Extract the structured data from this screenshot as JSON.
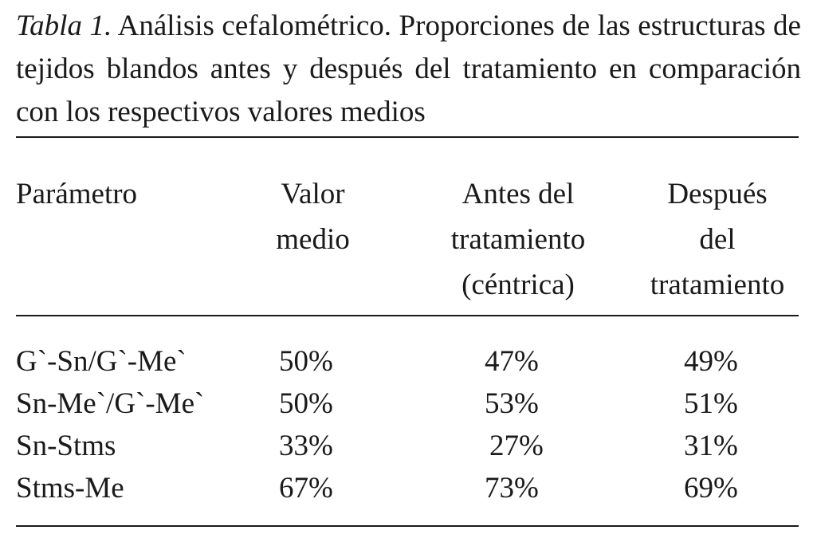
{
  "caption": {
    "label": "Tabla 1.",
    "text": "Análisis cefalométrico. Proporciones de las estructuras de tejidos blandos antes y después del tratamiento en comparación con los respectivos valores medios"
  },
  "table": {
    "headers": [
      [
        "Parámetro"
      ],
      [
        "Valor",
        "medio"
      ],
      [
        "Antes del",
        "tratamiento",
        "(céntrica)"
      ],
      [
        "Después",
        "del",
        "tratamiento"
      ]
    ],
    "rows": [
      [
        "G`-Sn/G`-Me`",
        "50%",
        "47%",
        "49%"
      ],
      [
        "Sn-Me`/G`-Me`",
        "50%",
        "53%",
        "51%"
      ],
      [
        "Sn-Stms",
        "33%",
        "27%",
        "31%"
      ],
      [
        "Stms-Me",
        "67%",
        "73%",
        "69%"
      ]
    ]
  }
}
